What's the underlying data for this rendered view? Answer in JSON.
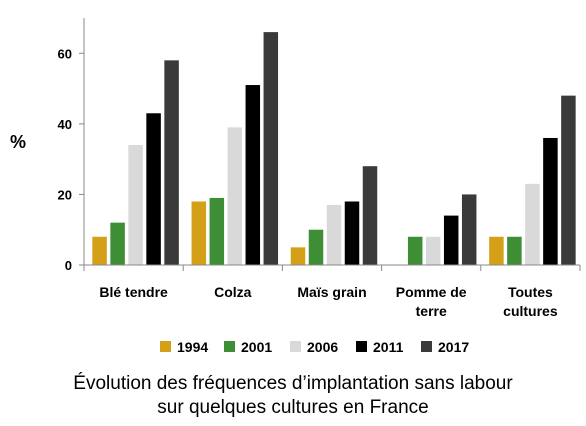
{
  "chart_data": {
    "type": "bar",
    "ylabel": "%",
    "ylim": [
      0,
      70
    ],
    "yticks": [
      0,
      20,
      40,
      60
    ],
    "grid": false,
    "legend_position": "bottom",
    "categories": [
      [
        "Blé tendre"
      ],
      [
        "Colza"
      ],
      [
        "Maïs grain"
      ],
      [
        "Pomme de",
        "terre"
      ],
      [
        "Toutes",
        "cultures"
      ]
    ],
    "series": [
      {
        "name": "1994",
        "color": "#D4A017",
        "values": [
          8,
          18,
          5,
          0,
          8
        ]
      },
      {
        "name": "2001",
        "color": "#3E8E36",
        "values": [
          12,
          19,
          10,
          8,
          8
        ]
      },
      {
        "name": "2006",
        "color": "#D9D9D9",
        "values": [
          34,
          39,
          17,
          8,
          23
        ]
      },
      {
        "name": "2011",
        "color": "#000000",
        "values": [
          43,
          51,
          18,
          14,
          36
        ]
      },
      {
        "name": "2017",
        "color": "#3A3A3A",
        "values": [
          58,
          66,
          28,
          20,
          48
        ]
      }
    ]
  },
  "caption": {
    "line1": "Évolution des fréquences d’implantation sans labour",
    "line2": "sur quelques cultures en France"
  }
}
